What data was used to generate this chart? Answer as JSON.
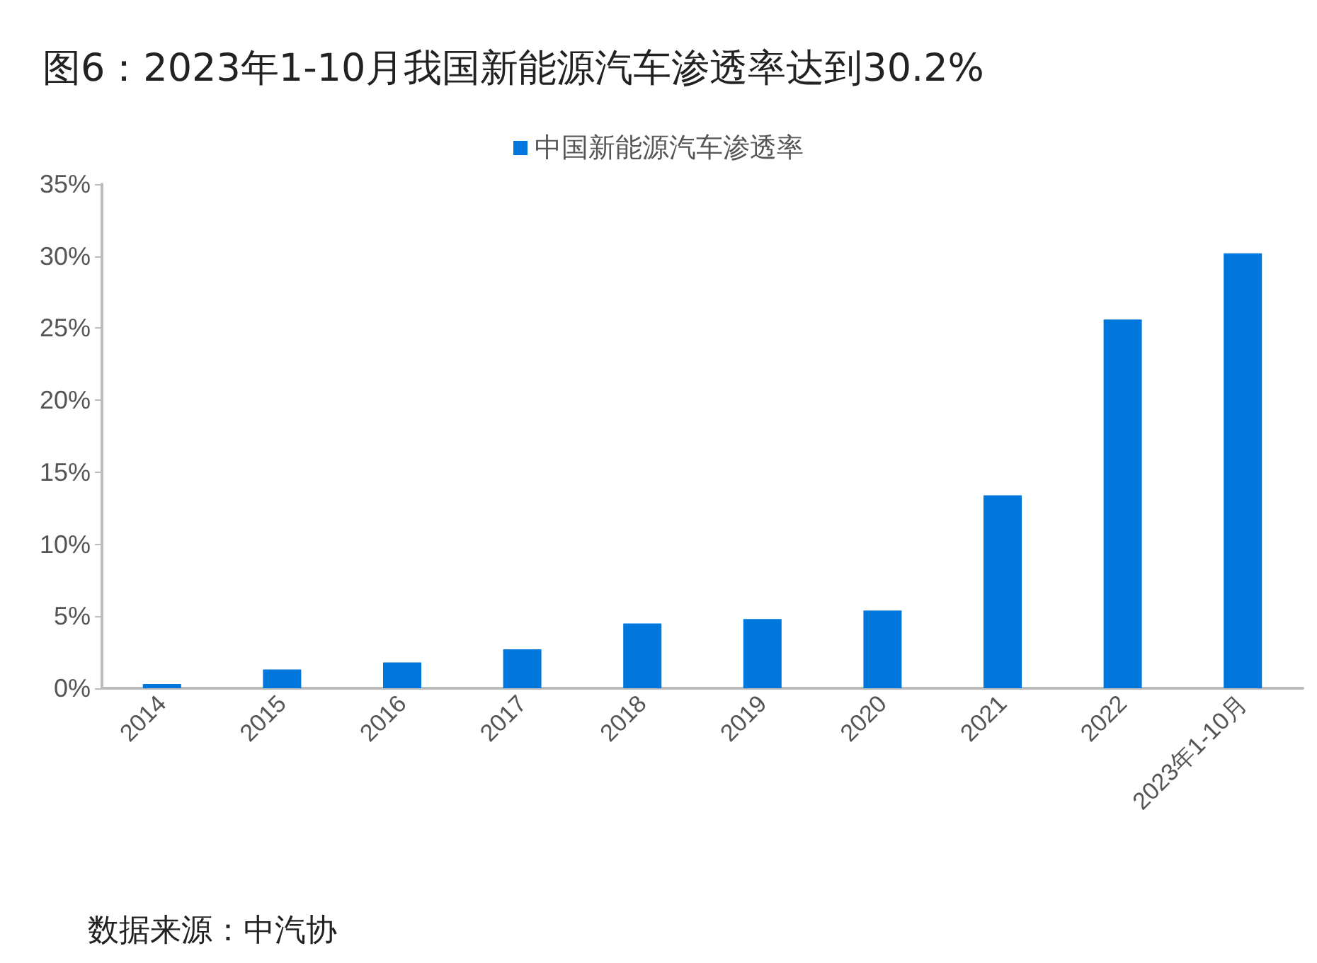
{
  "chart_data": {
    "type": "bar",
    "title": "图6：2023年1-10月我国新能源汽车渗透率达到30.2%",
    "categories": [
      "2014",
      "2015",
      "2016",
      "2017",
      "2018",
      "2019",
      "2020",
      "2021",
      "2022",
      "2023年1-10月"
    ],
    "series": [
      {
        "name": "中国新能源汽车渗透率",
        "color": "#0077dd",
        "values": [
          0.3,
          1.3,
          1.8,
          2.7,
          4.5,
          4.8,
          5.4,
          13.4,
          25.6,
          30.2
        ]
      }
    ],
    "ylim": [
      0,
      35
    ],
    "yticks": [
      {
        "value": 0,
        "label": "0%"
      },
      {
        "value": 5,
        "label": "5%"
      },
      {
        "value": 10,
        "label": "10%"
      },
      {
        "value": 15,
        "label": "15%"
      },
      {
        "value": 20,
        "label": "20%"
      },
      {
        "value": 25,
        "label": "25%"
      },
      {
        "value": 30,
        "label": "30%"
      },
      {
        "value": 35,
        "label": "35%"
      }
    ],
    "grid": false,
    "legend": "top",
    "annotations": [
      "数据来源：中汽协"
    ]
  }
}
